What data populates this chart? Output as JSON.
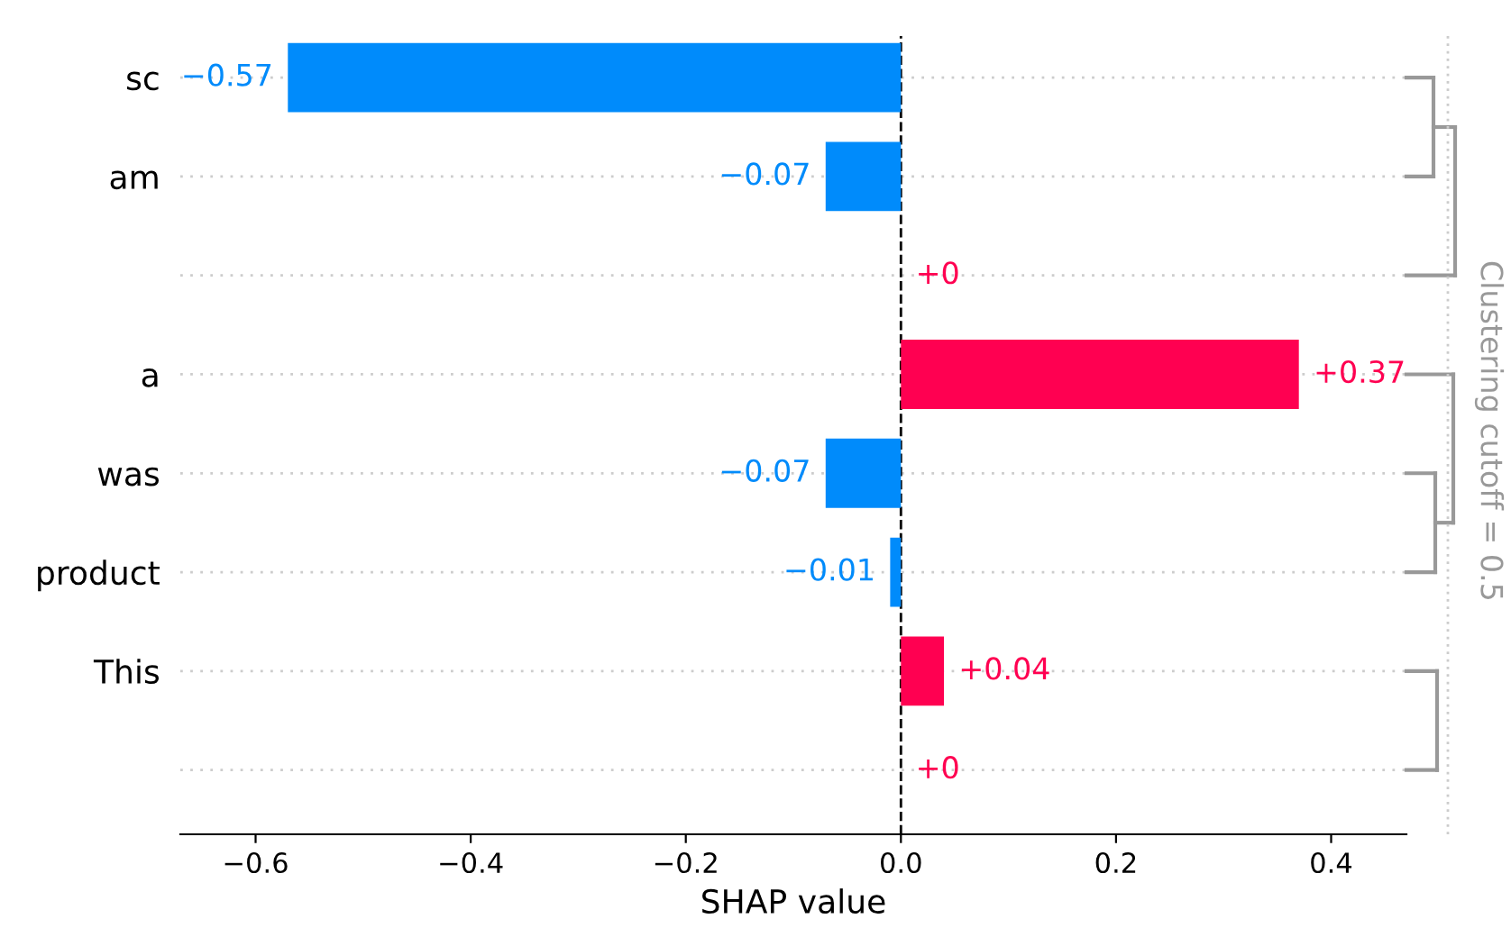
{
  "chart_data": {
    "type": "bar",
    "orientation": "horizontal",
    "xlabel": "SHAP value",
    "categories": [
      "sc",
      "am",
      null,
      "a",
      "was",
      "product",
      "This",
      null
    ],
    "values": [
      -0.57,
      -0.07,
      0,
      0.37,
      -0.07,
      -0.01,
      0.04,
      0
    ],
    "colors": [
      "#008bfb",
      "#008bfb",
      "#ff0051",
      "#ff0051",
      "#008bfb",
      "#008bfb",
      "#ff0051",
      "#ff0051"
    ],
    "value_labels": [
      "−0.57",
      "−0.07",
      "+0",
      "+0.37",
      "−0.07",
      "−0.01",
      "+0.04",
      "+0"
    ],
    "xlim": [
      -0.67,
      0.47
    ],
    "xticks": [
      {
        "value": -0.6,
        "label": "−0.6"
      },
      {
        "value": -0.4,
        "label": "−0.4"
      },
      {
        "value": -0.2,
        "label": "−0.2"
      },
      {
        "value": 0,
        "label": "0.0"
      },
      {
        "value": 0.2,
        "label": "0.2"
      },
      {
        "value": 0.4,
        "label": "0.4"
      }
    ],
    "ref_lines": [
      {
        "axis": "x",
        "value": 0,
        "color": "#000000",
        "line_style": "dashed"
      }
    ],
    "grid": "y",
    "annotations": [
      "Clustering cutoff = 0.5"
    ]
  }
}
